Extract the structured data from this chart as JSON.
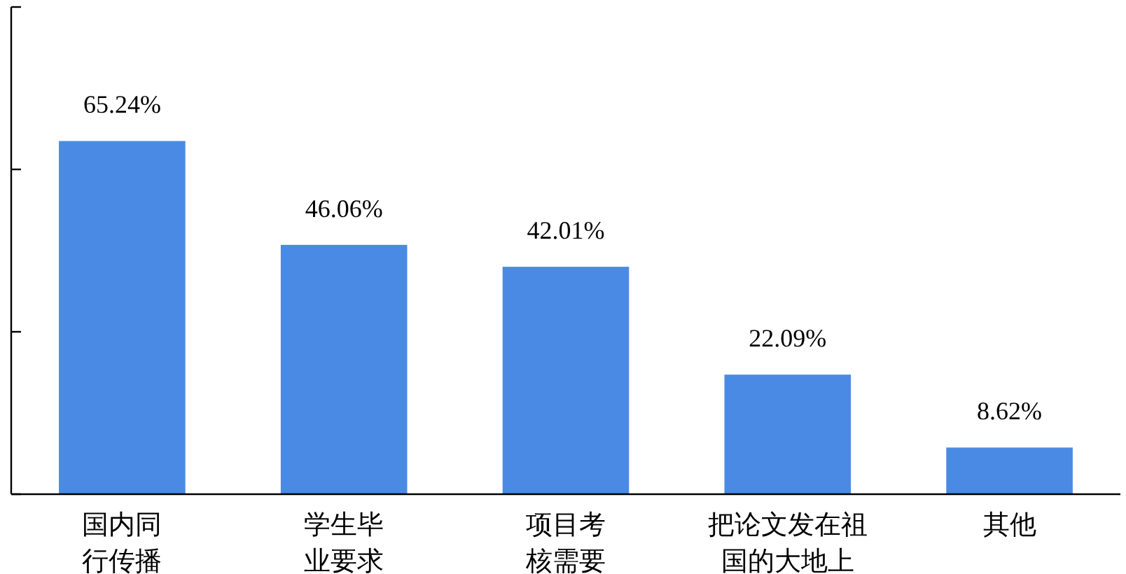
{
  "chart_data": {
    "type": "bar",
    "categories": [
      "国内同行传播",
      "学生毕业要求",
      "项目考核需要",
      "把论文发在祖国的大地上",
      "其他"
    ],
    "values": [
      65.24,
      46.06,
      42.01,
      22.09,
      8.62
    ],
    "value_labels": [
      "65.24%",
      "46.06%",
      "42.01%",
      "22.09%",
      "8.62%"
    ],
    "color": "#4a8ae4",
    "ylim": [
      0,
      90
    ],
    "yticks": [
      {
        "value": 0,
        "label": null
      },
      {
        "value": 30,
        "label": null
      },
      {
        "value": 60,
        "label": null
      },
      {
        "value": 90,
        "label": null
      }
    ],
    "tick_labels": "x"
  }
}
